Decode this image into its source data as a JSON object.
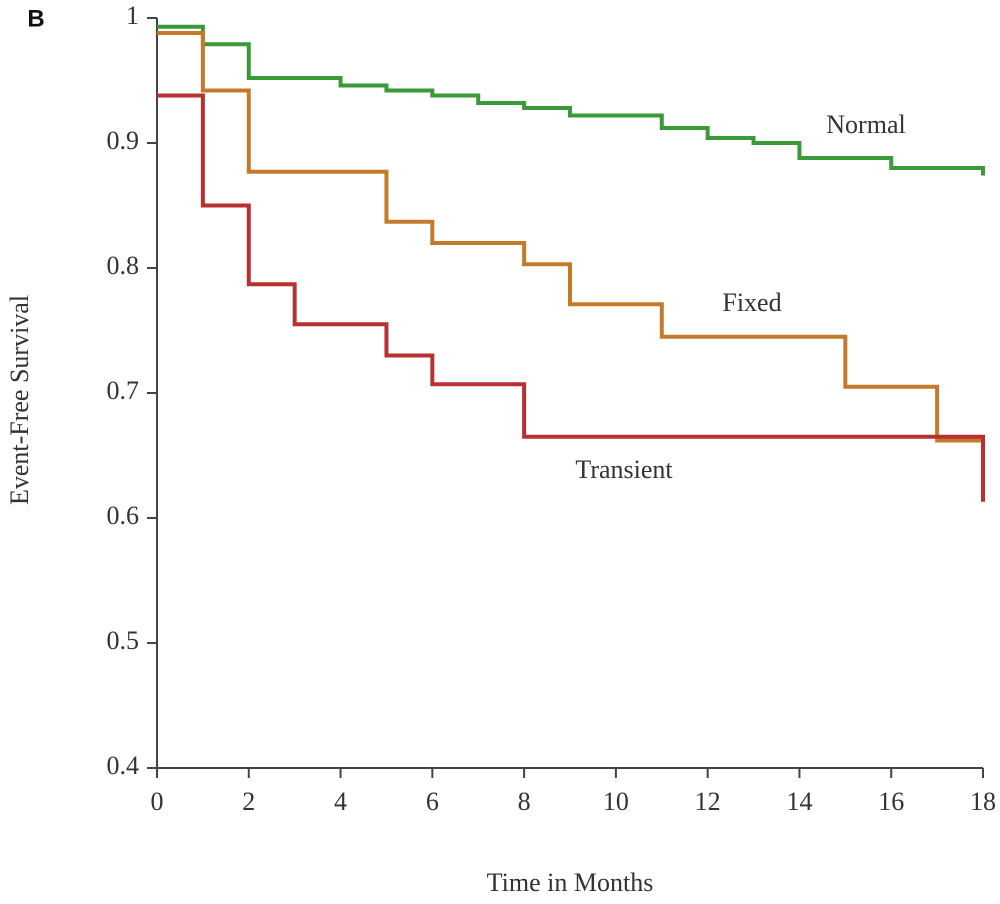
{
  "chart_data": {
    "type": "step",
    "panel_label": "B",
    "x_label": "Time in Months",
    "y_label": "Event-Free Survival",
    "xlim": [
      0,
      18
    ],
    "ylim": [
      0.4,
      1
    ],
    "xticks": [
      0,
      2,
      4,
      6,
      8,
      10,
      12,
      14,
      16,
      18
    ],
    "yticks": [
      0.4,
      0.5,
      0.6,
      0.7,
      0.8,
      0.9,
      1
    ],
    "series": [
      {
        "name": "Normal",
        "color": "#3a9a3a",
        "x": [
          0,
          1,
          2,
          4,
          5,
          6,
          7,
          8,
          9,
          11,
          12,
          13,
          14,
          16,
          18
        ],
        "values": [
          0.993,
          0.979,
          0.952,
          0.946,
          0.942,
          0.938,
          0.932,
          0.928,
          0.922,
          0.912,
          0.904,
          0.9,
          0.888,
          0.88,
          0.874
        ]
      },
      {
        "name": "Fixed",
        "color": "#c47a2a",
        "x": [
          0,
          1,
          2,
          5,
          6,
          8,
          9,
          11,
          15,
          17,
          18
        ],
        "values": [
          0.988,
          0.942,
          0.877,
          0.837,
          0.82,
          0.803,
          0.771,
          0.745,
          0.705,
          0.662,
          0.66
        ]
      },
      {
        "name": "Transient",
        "color": "#b83030",
        "x": [
          0,
          1,
          2,
          3,
          5,
          6,
          8,
          18
        ],
        "values": [
          0.938,
          0.85,
          0.787,
          0.755,
          0.73,
          0.707,
          0.665,
          0.613
        ]
      }
    ]
  }
}
